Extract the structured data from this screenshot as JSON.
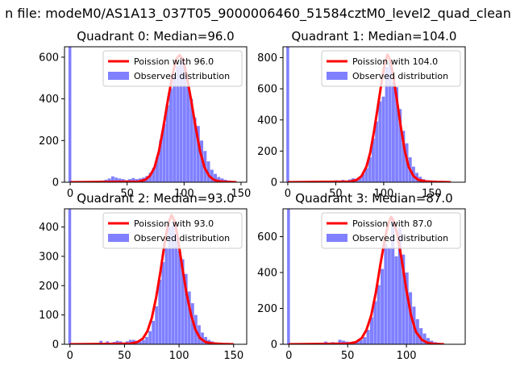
{
  "figure": {
    "suptitle": "n file: modeM0/AS1A13_037T05_9000006460_51584cztM0_level2_quad_clean"
  },
  "colors": {
    "poisson": "#ff0000",
    "observed": "#8080ff"
  },
  "chart_data": [
    {
      "type": "bar",
      "title": "Quadrant 0: Median=96.0",
      "xlim": [
        -5,
        155
      ],
      "ylim": [
        0,
        650
      ],
      "xticks": [
        0,
        50,
        100,
        150
      ],
      "yticks": [
        0,
        200,
        400,
        600
      ],
      "legend": {
        "position": "top-right",
        "poisson_label": "Poission with 96.0",
        "observed_label": "Observed distribution"
      },
      "bin_width": 3,
      "bins": [
        {
          "x": 0,
          "y": 650
        },
        {
          "x": 27,
          "y": 8
        },
        {
          "x": 30,
          "y": 12
        },
        {
          "x": 33,
          "y": 18
        },
        {
          "x": 36,
          "y": 28
        },
        {
          "x": 39,
          "y": 22
        },
        {
          "x": 42,
          "y": 18
        },
        {
          "x": 45,
          "y": 15
        },
        {
          "x": 48,
          "y": 10
        },
        {
          "x": 51,
          "y": 15
        },
        {
          "x": 54,
          "y": 20
        },
        {
          "x": 57,
          "y": 15
        },
        {
          "x": 60,
          "y": 18
        },
        {
          "x": 63,
          "y": 22
        },
        {
          "x": 66,
          "y": 30
        },
        {
          "x": 69,
          "y": 45
        },
        {
          "x": 72,
          "y": 70
        },
        {
          "x": 75,
          "y": 120
        },
        {
          "x": 78,
          "y": 200
        },
        {
          "x": 81,
          "y": 280
        },
        {
          "x": 84,
          "y": 370
        },
        {
          "x": 87,
          "y": 450
        },
        {
          "x": 90,
          "y": 510
        },
        {
          "x": 93,
          "y": 560
        },
        {
          "x": 96,
          "y": 580
        },
        {
          "x": 99,
          "y": 560
        },
        {
          "x": 102,
          "y": 460
        },
        {
          "x": 105,
          "y": 400
        },
        {
          "x": 108,
          "y": 310
        },
        {
          "x": 111,
          "y": 270
        },
        {
          "x": 114,
          "y": 200
        },
        {
          "x": 117,
          "y": 150
        },
        {
          "x": 120,
          "y": 100
        },
        {
          "x": 123,
          "y": 60
        },
        {
          "x": 126,
          "y": 40
        },
        {
          "x": 129,
          "y": 25
        },
        {
          "x": 132,
          "y": 18
        },
        {
          "x": 135,
          "y": 12
        },
        {
          "x": 138,
          "y": 8
        },
        {
          "x": 141,
          "y": 5
        }
      ],
      "poisson": {
        "mean": 96,
        "x": [
          0,
          60,
          66,
          70,
          74,
          78,
          82,
          86,
          90,
          93,
          96,
          99,
          102,
          106,
          110,
          114,
          118,
          122,
          126,
          130,
          136,
          146
        ],
        "y": [
          0,
          3,
          12,
          30,
          70,
          150,
          270,
          400,
          520,
          590,
          610,
          590,
          520,
          400,
          270,
          150,
          70,
          30,
          12,
          5,
          2,
          0
        ]
      }
    },
    {
      "type": "bar",
      "title": "Quadrant 1: Median=104.0",
      "xlim": [
        -5,
        185
      ],
      "ylim": [
        0,
        870
      ],
      "xticks": [
        0,
        50,
        100,
        150
      ],
      "yticks": [
        0,
        200,
        400,
        600,
        800
      ],
      "legend": {
        "position": "top-right",
        "poisson_label": "Poission with 104.0",
        "observed_label": "Observed distribution"
      },
      "bin_width": 3.5,
      "bins": [
        {
          "x": 0,
          "y": 870
        },
        {
          "x": 35,
          "y": 10
        },
        {
          "x": 42,
          "y": 10
        },
        {
          "x": 49,
          "y": 12
        },
        {
          "x": 56,
          "y": 15
        },
        {
          "x": 63,
          "y": 18
        },
        {
          "x": 66.5,
          "y": 25
        },
        {
          "x": 70,
          "y": 22
        },
        {
          "x": 73.5,
          "y": 30
        },
        {
          "x": 77,
          "y": 55
        },
        {
          "x": 80.5,
          "y": 90
        },
        {
          "x": 84,
          "y": 160
        },
        {
          "x": 87.5,
          "y": 280
        },
        {
          "x": 91,
          "y": 390
        },
        {
          "x": 94.5,
          "y": 520
        },
        {
          "x": 98,
          "y": 550
        },
        {
          "x": 101.5,
          "y": 740
        },
        {
          "x": 105,
          "y": 780
        },
        {
          "x": 108.5,
          "y": 640
        },
        {
          "x": 112,
          "y": 610
        },
        {
          "x": 115.5,
          "y": 470
        },
        {
          "x": 119,
          "y": 330
        },
        {
          "x": 122.5,
          "y": 250
        },
        {
          "x": 126,
          "y": 160
        },
        {
          "x": 129.5,
          "y": 100
        },
        {
          "x": 133,
          "y": 60
        },
        {
          "x": 136.5,
          "y": 35
        },
        {
          "x": 140,
          "y": 20
        },
        {
          "x": 143.5,
          "y": 12
        },
        {
          "x": 147,
          "y": 8
        },
        {
          "x": 154,
          "y": 5
        },
        {
          "x": 161,
          "y": 3
        }
      ],
      "poisson": {
        "mean": 104,
        "x": [
          0,
          65,
          72,
          77,
          82,
          86,
          90,
          94,
          98,
          101,
          104,
          107,
          110,
          114,
          118,
          122,
          126,
          131,
          136,
          144,
          155,
          170
        ],
        "y": [
          0,
          4,
          15,
          40,
          100,
          190,
          330,
          490,
          650,
          760,
          820,
          780,
          680,
          520,
          350,
          200,
          100,
          40,
          15,
          5,
          2,
          0
        ]
      }
    },
    {
      "type": "bar",
      "title": "Quadrant 2: Median=93.0",
      "xlim": [
        -5,
        162
      ],
      "ylim": [
        0,
        462
      ],
      "xticks": [
        0,
        50,
        100,
        150
      ],
      "yticks": [
        0,
        100,
        200,
        300,
        400
      ],
      "legend": {
        "position": "top-right",
        "poisson_label": "Poission with 93.0",
        "observed_label": "Observed distribution"
      },
      "bin_width": 3,
      "bins": [
        {
          "x": 0,
          "y": 462
        },
        {
          "x": 27,
          "y": 12
        },
        {
          "x": 33,
          "y": 10
        },
        {
          "x": 39,
          "y": 8
        },
        {
          "x": 42,
          "y": 12
        },
        {
          "x": 45,
          "y": 10
        },
        {
          "x": 51,
          "y": 10
        },
        {
          "x": 54,
          "y": 15
        },
        {
          "x": 57,
          "y": 15
        },
        {
          "x": 60,
          "y": 12
        },
        {
          "x": 63,
          "y": 10
        },
        {
          "x": 66,
          "y": 15
        },
        {
          "x": 69,
          "y": 25
        },
        {
          "x": 72,
          "y": 45
        },
        {
          "x": 75,
          "y": 80
        },
        {
          "x": 78,
          "y": 130
        },
        {
          "x": 81,
          "y": 220
        },
        {
          "x": 84,
          "y": 280
        },
        {
          "x": 87,
          "y": 330
        },
        {
          "x": 90,
          "y": 400
        },
        {
          "x": 93,
          "y": 405
        },
        {
          "x": 96,
          "y": 380
        },
        {
          "x": 99,
          "y": 320
        },
        {
          "x": 102,
          "y": 290
        },
        {
          "x": 105,
          "y": 240
        },
        {
          "x": 108,
          "y": 180
        },
        {
          "x": 111,
          "y": 140
        },
        {
          "x": 114,
          "y": 100
        },
        {
          "x": 117,
          "y": 65
        },
        {
          "x": 120,
          "y": 40
        },
        {
          "x": 123,
          "y": 25
        },
        {
          "x": 126,
          "y": 15
        },
        {
          "x": 129,
          "y": 10
        },
        {
          "x": 132,
          "y": 6
        },
        {
          "x": 138,
          "y": 3
        }
      ],
      "poisson": {
        "mean": 93,
        "x": [
          0,
          55,
          62,
          67,
          71,
          75,
          79,
          83,
          87,
          90,
          93,
          96,
          99,
          103,
          107,
          111,
          115,
          119,
          124,
          130,
          140,
          150
        ],
        "y": [
          0,
          2,
          8,
          20,
          45,
          90,
          160,
          250,
          350,
          410,
          440,
          420,
          360,
          260,
          170,
          100,
          50,
          22,
          8,
          3,
          1,
          0
        ]
      }
    },
    {
      "type": "bar",
      "title": "Quadrant 3: Median=87.0",
      "xlim": [
        -5,
        150
      ],
      "ylim": [
        0,
        755
      ],
      "xticks": [
        0,
        50,
        100
      ],
      "yticks": [
        0,
        200,
        400,
        600
      ],
      "legend": {
        "position": "top-right",
        "poisson_label": "Poission with 87.0",
        "observed_label": "Observed distribution"
      },
      "bin_width": 3,
      "bins": [
        {
          "x": 0,
          "y": 755
        },
        {
          "x": 30,
          "y": 15
        },
        {
          "x": 36,
          "y": 12
        },
        {
          "x": 42,
          "y": 25
        },
        {
          "x": 45,
          "y": 20
        },
        {
          "x": 48,
          "y": 15
        },
        {
          "x": 51,
          "y": 12
        },
        {
          "x": 54,
          "y": 15
        },
        {
          "x": 57,
          "y": 20
        },
        {
          "x": 60,
          "y": 25
        },
        {
          "x": 63,
          "y": 40
        },
        {
          "x": 66,
          "y": 80
        },
        {
          "x": 69,
          "y": 150
        },
        {
          "x": 72,
          "y": 240
        },
        {
          "x": 75,
          "y": 330
        },
        {
          "x": 78,
          "y": 420
        },
        {
          "x": 81,
          "y": 560
        },
        {
          "x": 84,
          "y": 540
        },
        {
          "x": 87,
          "y": 700
        },
        {
          "x": 90,
          "y": 490
        },
        {
          "x": 93,
          "y": 650
        },
        {
          "x": 96,
          "y": 500
        },
        {
          "x": 99,
          "y": 400
        },
        {
          "x": 102,
          "y": 290
        },
        {
          "x": 105,
          "y": 210
        },
        {
          "x": 108,
          "y": 140
        },
        {
          "x": 111,
          "y": 90
        },
        {
          "x": 114,
          "y": 60
        },
        {
          "x": 117,
          "y": 35
        },
        {
          "x": 120,
          "y": 20
        },
        {
          "x": 123,
          "y": 12
        },
        {
          "x": 126,
          "y": 8
        },
        {
          "x": 129,
          "y": 5
        }
      ],
      "poisson": {
        "mean": 87,
        "x": [
          0,
          50,
          57,
          62,
          66,
          70,
          74,
          78,
          82,
          85,
          87,
          89,
          92,
          96,
          100,
          104,
          108,
          113,
          118,
          124,
          132
        ],
        "y": [
          0,
          3,
          12,
          35,
          80,
          160,
          290,
          450,
          600,
          680,
          710,
          690,
          620,
          470,
          300,
          160,
          70,
          25,
          8,
          2,
          0
        ]
      }
    }
  ]
}
